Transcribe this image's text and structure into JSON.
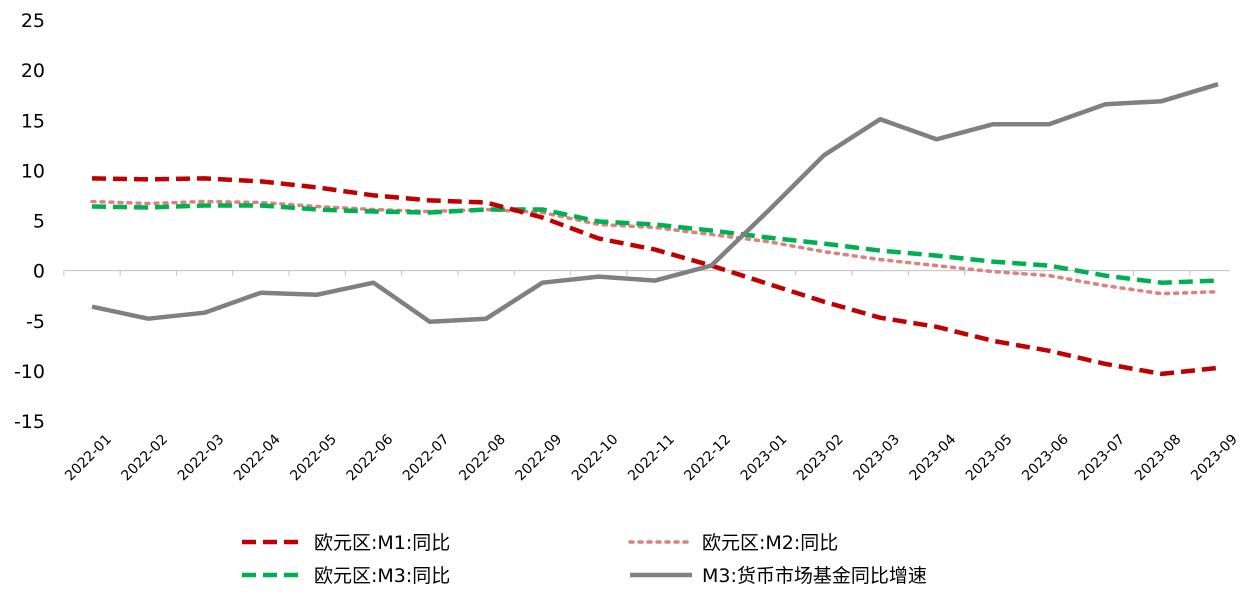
{
  "chart_data": {
    "type": "line",
    "categories": [
      "2022-01",
      "2022-02",
      "2022-03",
      "2022-04",
      "2022-05",
      "2022-06",
      "2022-07",
      "2022-08",
      "2022-09",
      "2022-10",
      "2022-11",
      "2022-12",
      "2023-01",
      "2023-02",
      "2023-03",
      "2023-04",
      "2023-05",
      "2023-06",
      "2023-07",
      "2023-08",
      "2023-09"
    ],
    "ylim": [
      -15,
      25
    ],
    "yticks": [
      25,
      20,
      15,
      10,
      5,
      0,
      -5,
      -10,
      -15
    ],
    "grid": false,
    "legend_position": "bottom",
    "series": [
      {
        "name": "欧元区:M1:同比",
        "color": "#c00000",
        "style": "dashed",
        "values": [
          9.2,
          9.1,
          9.2,
          8.9,
          8.3,
          7.5,
          7.0,
          6.8,
          5.3,
          3.2,
          2.1,
          0.5,
          -1.3,
          -3.1,
          -4.7,
          -5.6,
          -7.0,
          -8.0,
          -9.3,
          -10.3,
          -9.7
        ]
      },
      {
        "name": "欧元区:M2:同比",
        "color": "#d9827f",
        "style": "dotted",
        "values": [
          6.9,
          6.7,
          6.9,
          6.8,
          6.4,
          6.1,
          5.9,
          6.1,
          5.8,
          4.6,
          4.3,
          3.6,
          2.9,
          1.9,
          1.1,
          0.5,
          -0.1,
          -0.5,
          -1.5,
          -2.3,
          -2.1
        ]
      },
      {
        "name": "欧元区:M3:同比",
        "color": "#00b050",
        "style": "dashed",
        "values": [
          6.4,
          6.3,
          6.5,
          6.5,
          6.1,
          5.9,
          5.8,
          6.1,
          6.1,
          4.9,
          4.6,
          4.0,
          3.3,
          2.7,
          2.0,
          1.5,
          0.9,
          0.5,
          -0.5,
          -1.2,
          -1.0
        ]
      },
      {
        "name": "M3:货币市场基金同比增速",
        "color": "#808080",
        "style": "solid",
        "values": [
          -3.6,
          -4.8,
          -4.2,
          -2.2,
          -2.4,
          -1.2,
          -5.1,
          -4.8,
          -1.2,
          -0.6,
          -1.0,
          0.5,
          5.9,
          11.5,
          15.1,
          13.1,
          14.6,
          14.6,
          16.6,
          16.9,
          18.6
        ]
      }
    ]
  }
}
